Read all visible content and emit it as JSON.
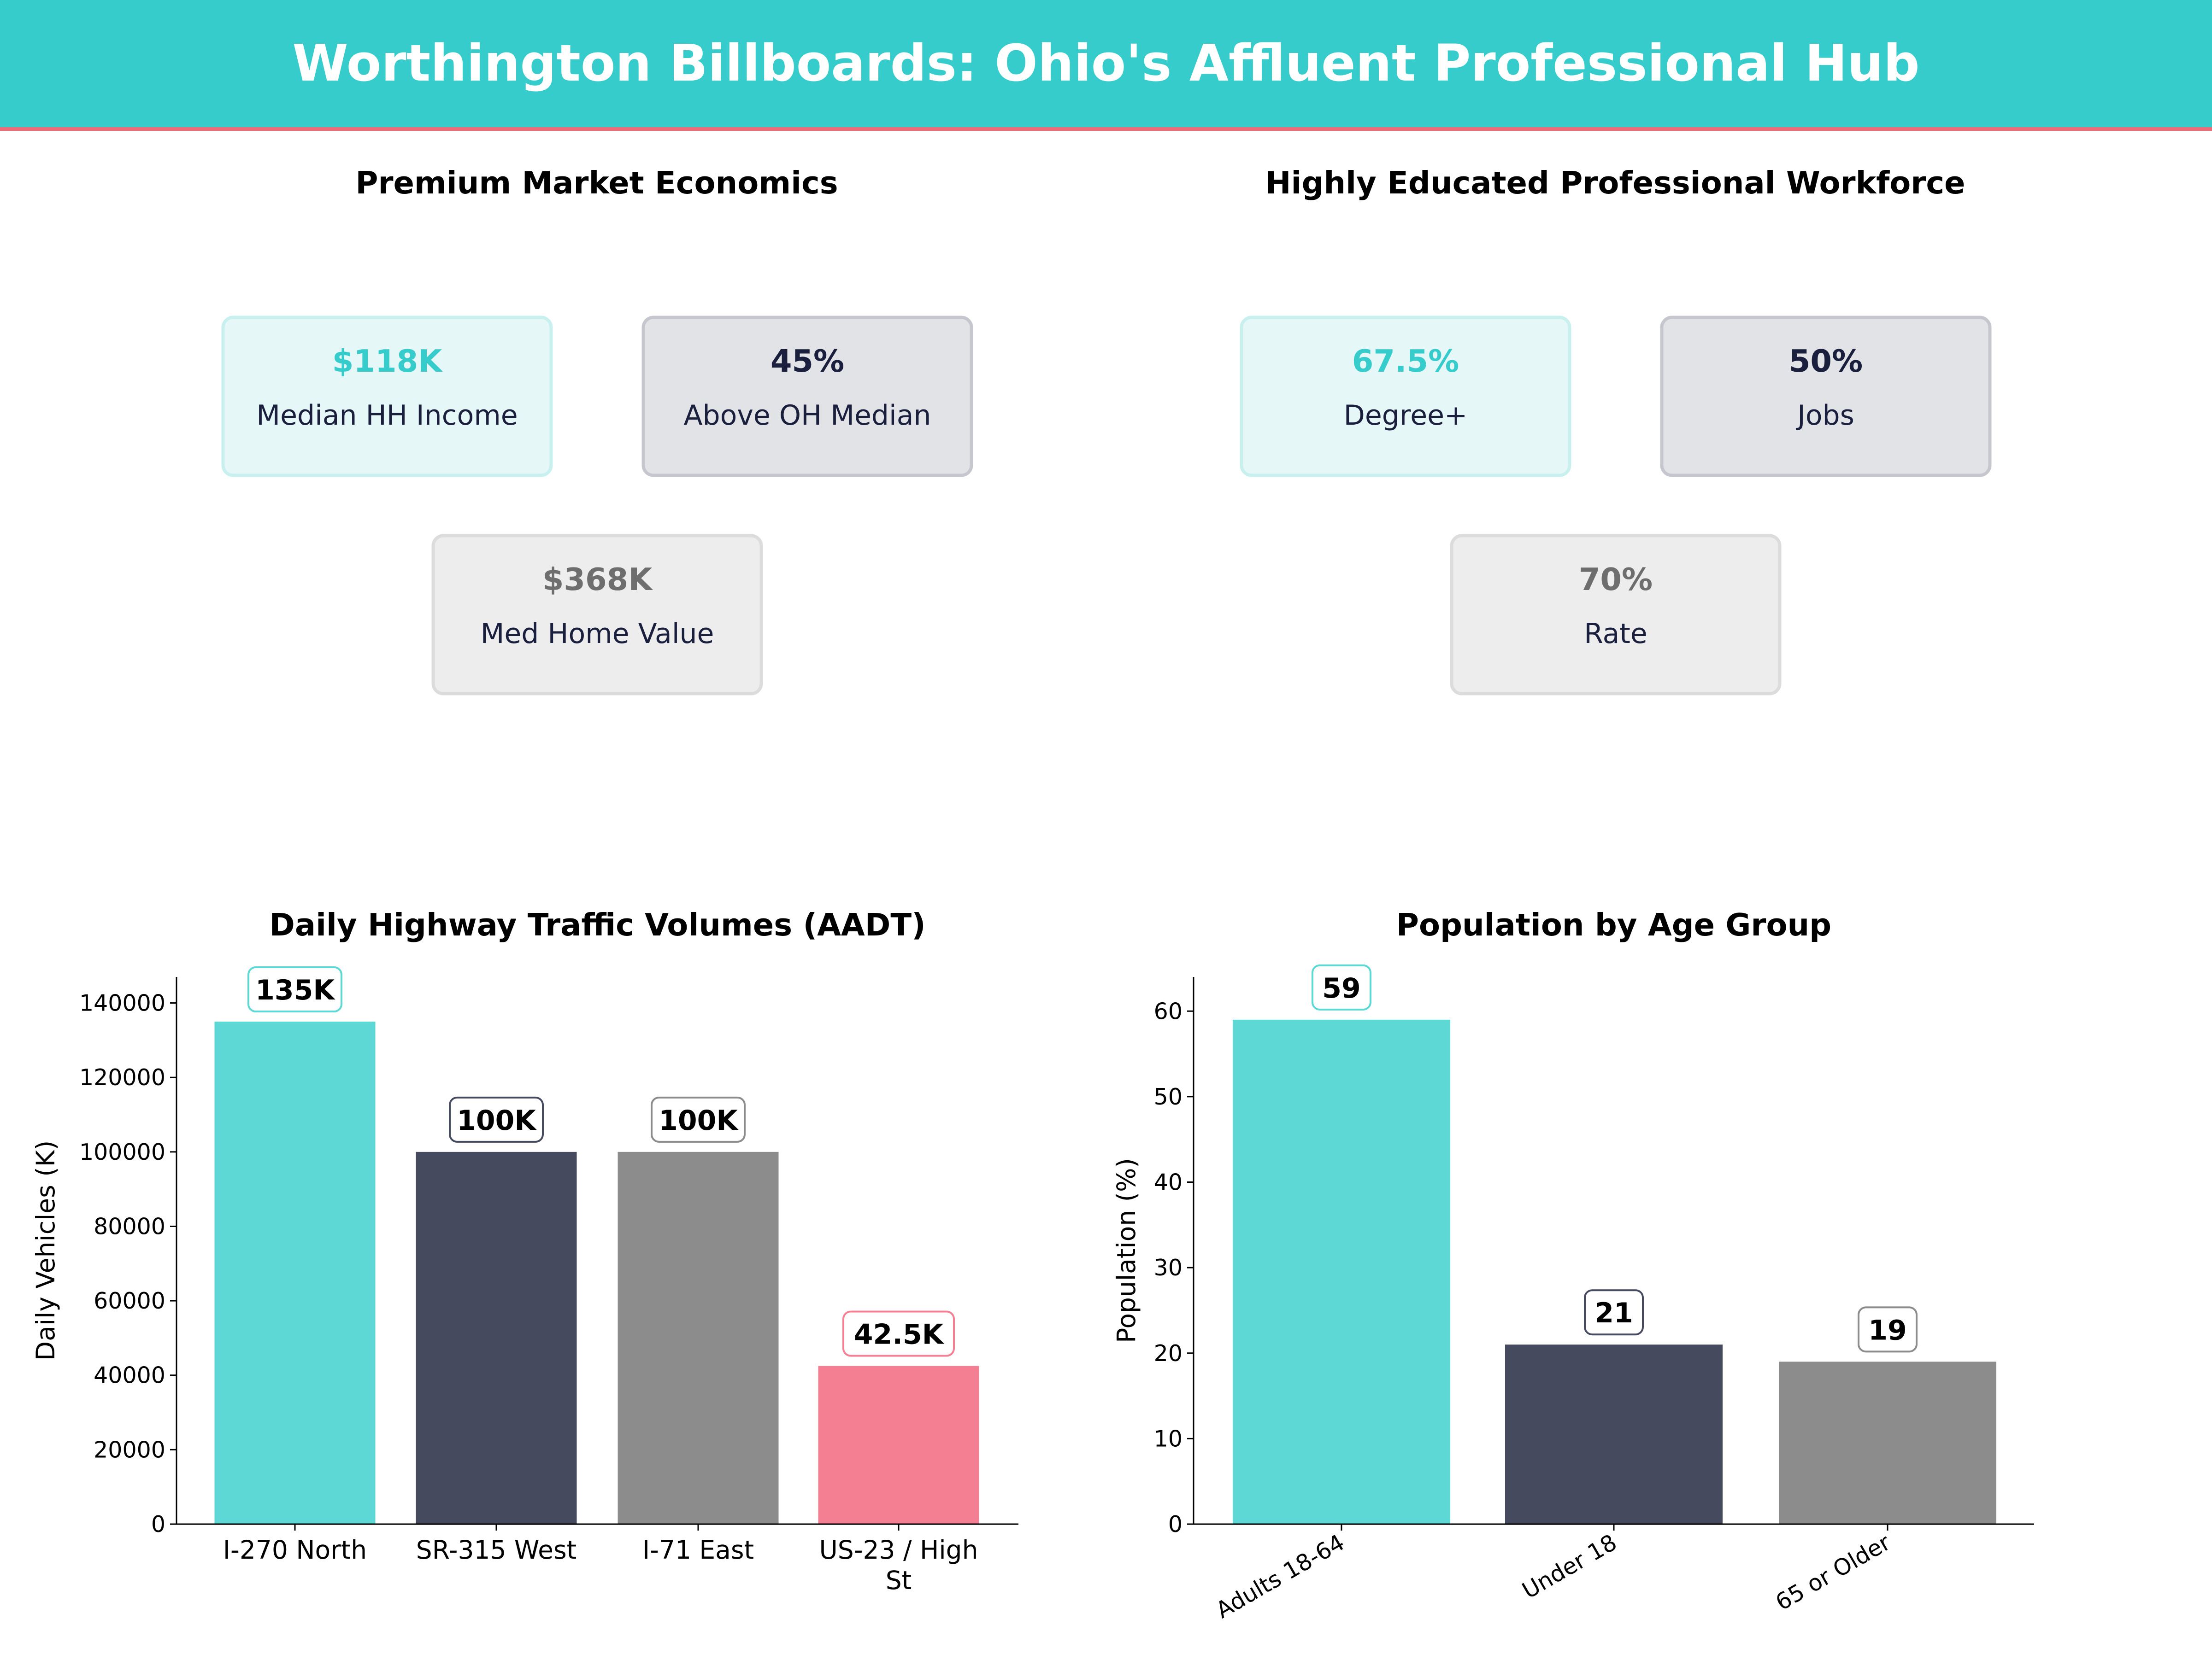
{
  "header": {
    "title": "Worthington Billboards: Ohio's Affluent Professional Hub",
    "bg_color": "#36cccc",
    "accent_line": "#f06a7a"
  },
  "panels": {
    "economics": {
      "title": "Premium Market Economics",
      "cards": [
        {
          "value": "$118K",
          "label": "Median HH Income",
          "style": "teal"
        },
        {
          "value": "45%",
          "label": "Above OH Median",
          "style": "navy"
        },
        {
          "value": "$368K",
          "label": "Med Home Value",
          "style": "gray"
        }
      ]
    },
    "workforce": {
      "title": "Highly Educated Professional Workforce",
      "cards": [
        {
          "value": "67.5%",
          "label": "Degree+",
          "style": "teal"
        },
        {
          "value": "50%",
          "label": "Jobs",
          "style": "navy"
        },
        {
          "value": "70%",
          "label": "Rate",
          "style": "gray"
        }
      ]
    }
  },
  "colors": {
    "teal": "#5dd8d5",
    "navy": "#464a5f",
    "gray": "#8c8c8c",
    "pink": "#f47f92"
  },
  "chart_data": [
    {
      "type": "bar",
      "title": "Daily Highway Traffic Volumes (AADT)",
      "xlabel": "",
      "ylabel": "Daily Vehicles (K)",
      "categories": [
        "I-270 North",
        "SR-315 West",
        "I-71 East",
        "US-23 / High St"
      ],
      "values": [
        135000,
        100000,
        100000,
        42500
      ],
      "data_labels": [
        "135K",
        "100K",
        "100K",
        "42.5K"
      ],
      "bar_colors": [
        "#5dd8d5",
        "#464a5f",
        "#8c8c8c",
        "#f47f92"
      ],
      "ylim": [
        0,
        147000
      ],
      "yticks": [
        0,
        20000,
        40000,
        60000,
        80000,
        100000,
        120000,
        140000
      ],
      "grid": false
    },
    {
      "type": "bar",
      "title": "Population by Age Group",
      "xlabel": "",
      "ylabel": "Population (%)",
      "categories": [
        "Adults 18-64",
        "Under 18",
        "65 or Older"
      ],
      "values": [
        59,
        21,
        19
      ],
      "data_labels": [
        "59",
        "21",
        "19"
      ],
      "bar_colors": [
        "#5dd8d5",
        "#464a5f",
        "#8c8c8c"
      ],
      "ylim": [
        0,
        64
      ],
      "yticks": [
        0,
        10,
        20,
        30,
        40,
        50,
        60
      ],
      "grid": false
    }
  ]
}
